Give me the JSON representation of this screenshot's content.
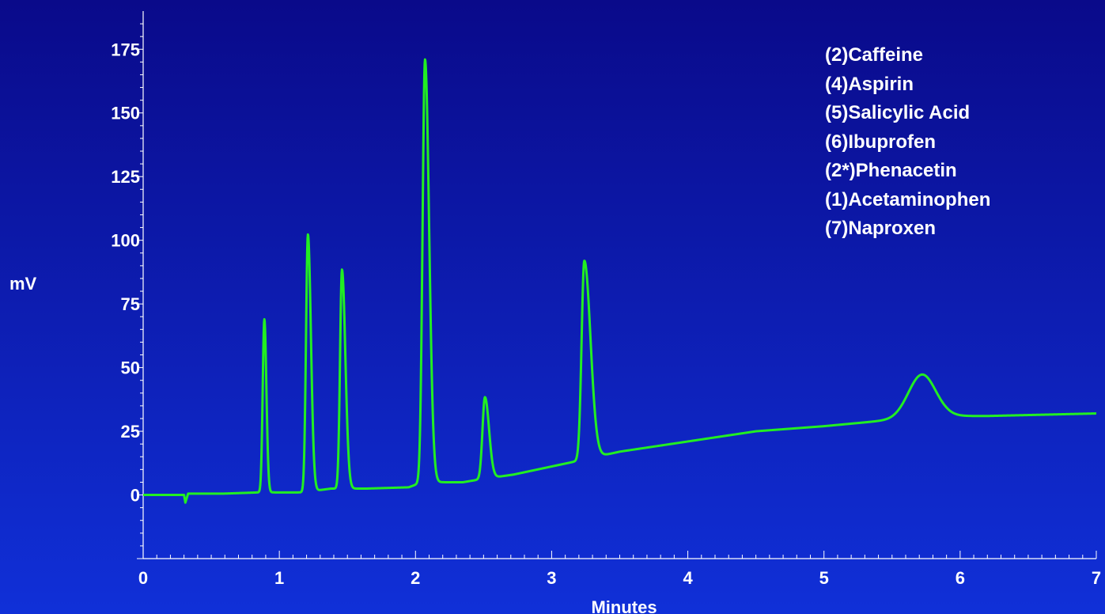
{
  "chart_data": {
    "type": "line",
    "xlabel": "Minutes",
    "ylabel": "mV",
    "xlim": [
      0,
      7
    ],
    "ylim": [
      -25,
      190
    ],
    "x_ticks": [
      0,
      1,
      2,
      3,
      4,
      5,
      6,
      7
    ],
    "y_ticks": [
      0,
      25,
      50,
      75,
      100,
      125,
      150,
      175
    ],
    "x_tick_labels": [
      "0",
      "1",
      "2",
      "3",
      "4",
      "5",
      "6",
      "7"
    ],
    "y_tick_labels": [
      "0",
      "25",
      "50",
      "75",
      "100",
      "125",
      "150",
      "175"
    ],
    "line_color": "#22ee22",
    "legend": [
      "(2)Caffeine",
      "(4)Aspirin",
      "(5)Salicylic Acid",
      "(6)Ibuprofen",
      "(2*)Phenacetin",
      "(1)Acetaminophen",
      "(7)Naproxen"
    ],
    "baseline": [
      [
        0.0,
        0.0
      ],
      [
        0.3,
        0.0
      ],
      [
        0.31,
        -3
      ],
      [
        0.33,
        0.5
      ],
      [
        0.58,
        0.5
      ],
      [
        0.85,
        1.0
      ],
      [
        1.05,
        1.0
      ],
      [
        1.17,
        1.0
      ],
      [
        1.38,
        2.5
      ],
      [
        1.64,
        2.5
      ],
      [
        1.95,
        3.0
      ],
      [
        2.05,
        5
      ],
      [
        2.35,
        5.0
      ],
      [
        2.46,
        6.0
      ],
      [
        2.72,
        8.0
      ],
      [
        3.16,
        13.0
      ],
      [
        3.5,
        17.0
      ],
      [
        4.0,
        21.0
      ],
      [
        4.5,
        25.0
      ],
      [
        5.0,
        27.0
      ],
      [
        5.4,
        29.0
      ],
      [
        5.9,
        31.0
      ],
      [
        6.2,
        31.0
      ],
      [
        7.0,
        32.0
      ]
    ],
    "peaks": [
      {
        "rt": 0.89,
        "height": 68,
        "width": 0.012,
        "tail": 0.015
      },
      {
        "rt": 1.21,
        "height": 101,
        "width": 0.014,
        "tail": 0.022
      },
      {
        "rt": 1.46,
        "height": 86,
        "width": 0.014,
        "tail": 0.025
      },
      {
        "rt": 2.07,
        "height": 166,
        "width": 0.018,
        "tail": 0.03
      },
      {
        "rt": 2.51,
        "height": 32,
        "width": 0.018,
        "tail": 0.03
      },
      {
        "rt": 3.24,
        "height": 78,
        "width": 0.02,
        "tail": 0.045
      },
      {
        "rt": 5.72,
        "height": 17,
        "width": 0.1,
        "tail": 0.1
      }
    ]
  }
}
